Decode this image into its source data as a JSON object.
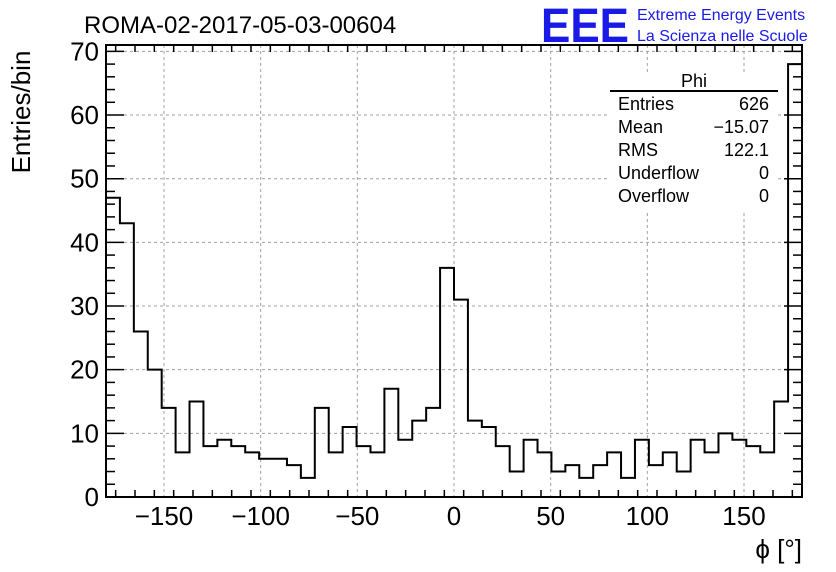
{
  "header": {
    "run_title": "ROMA-02-2017-05-03-00604",
    "logo_mark": "EEE",
    "logo_line1": "Extreme Energy Events",
    "logo_line2": "La Scienza nelle Scuole",
    "logo_color": "#1a1ae6"
  },
  "stats_box": {
    "title": "Phi",
    "rows": [
      {
        "label": "Entries",
        "value": "626"
      },
      {
        "label": "Mean",
        "value": "−15.07"
      },
      {
        "label": "RMS",
        "value": "122.1"
      },
      {
        "label": "Underflow",
        "value": "0"
      },
      {
        "label": "Overflow",
        "value": "0"
      }
    ]
  },
  "chart_data": {
    "type": "bar",
    "subtype": "step-histogram",
    "xlabel": "ϕ [°]",
    "ylabel": "Entries/bin",
    "xlim": [
      -180,
      180
    ],
    "ylim": [
      0,
      71
    ],
    "grid": true,
    "bin_width": 7.2,
    "bin_edges_start": -180,
    "values": [
      47,
      43,
      26,
      20,
      14,
      7,
      15,
      8,
      9,
      8,
      7,
      6,
      6,
      5,
      3,
      14,
      7,
      11,
      8,
      7,
      17,
      9,
      12,
      14,
      36,
      31,
      12,
      11,
      8,
      4,
      9,
      7,
      4,
      5,
      3,
      5,
      7,
      3,
      9,
      5,
      7,
      4,
      9,
      7,
      10,
      9,
      8,
      7,
      15,
      68
    ],
    "xticks": [
      -150,
      -100,
      -50,
      0,
      50,
      100,
      150
    ],
    "xtick_labels": [
      "−150",
      "−100",
      "−50",
      "0",
      "50",
      "100",
      "150"
    ],
    "yticks": [
      0,
      10,
      20,
      30,
      40,
      50,
      60,
      70
    ],
    "ytick_labels": [
      "0",
      "10",
      "20",
      "30",
      "40",
      "50",
      "60",
      "70"
    ],
    "line_color": "#000000",
    "grid_color": "#a0a0a0"
  }
}
